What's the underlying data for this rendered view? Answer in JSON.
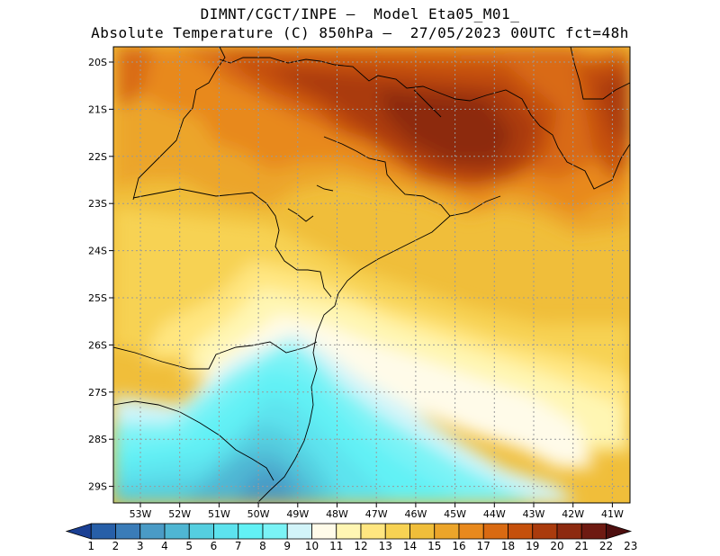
{
  "title_line1": "DIMNT/CGCT/INPE —  Model Eta05_M01_",
  "title_line2": "Absolute Temperature (C) 850hPa —  27/05/2023 00UTC fct=48h",
  "lat_labels": [
    "20S",
    "21S",
    "22S",
    "23S",
    "24S",
    "25S",
    "26S",
    "27S",
    "28S",
    "29S"
  ],
  "lon_labels": [
    "53W",
    "52W",
    "51W",
    "50W",
    "49W",
    "48W",
    "47W",
    "46W",
    "45W",
    "44W",
    "43W",
    "42W",
    "41W"
  ],
  "colorbar": {
    "labels": [
      "1",
      "2",
      "3",
      "4",
      "5",
      "6",
      "7",
      "8",
      "9",
      "10",
      "11",
      "12",
      "13",
      "14",
      "15",
      "16",
      "17",
      "18",
      "19",
      "20",
      "21",
      "22",
      "23"
    ],
    "colors": [
      "#1a3f93",
      "#275fa8",
      "#3a7cb8",
      "#4a9bc6",
      "#4fb6d3",
      "#55cfe0",
      "#5de3ee",
      "#62f1f5",
      "#7af3f6",
      "#d2f4f9",
      "#fffbe9",
      "#fff6b3",
      "#ffe680",
      "#f7d253",
      "#f0be3a",
      "#eca52a",
      "#e8891d",
      "#d96a12",
      "#c5500c",
      "#aa3b0d",
      "#8d2a10",
      "#6e1a12",
      "#4e0f0f"
    ]
  }
}
